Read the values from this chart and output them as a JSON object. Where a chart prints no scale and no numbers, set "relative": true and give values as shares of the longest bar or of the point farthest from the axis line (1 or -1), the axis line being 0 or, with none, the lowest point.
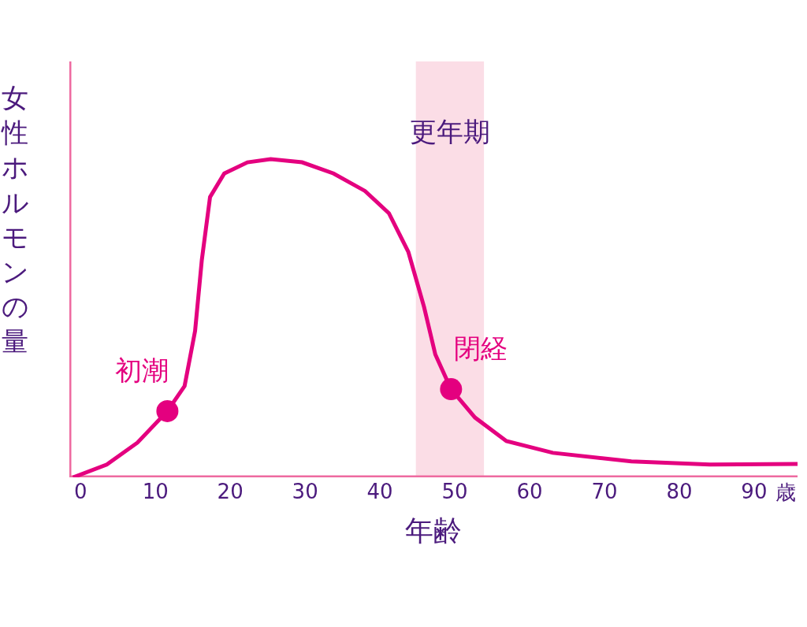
{
  "chart_data": {
    "type": "line",
    "relative": true,
    "xlabel": "年齢",
    "ylabel": "女性ホルモンの量",
    "xlim": [
      -1.5,
      95.8
    ],
    "xticks": [
      0,
      10,
      20,
      30,
      40,
      50,
      60,
      70,
      80,
      90
    ],
    "grid": false,
    "marker": "none",
    "line_style": "solid",
    "series": [
      {
        "color": "#e4007f",
        "x": [
          -1,
          3.5,
          7.6,
          11.6,
          13.9,
          15.3,
          16.2,
          17.3,
          19.2,
          22.3,
          25.4,
          29.6,
          33.8,
          38,
          41.2,
          43.8,
          45.9,
          47.4,
          49.5,
          52.7,
          56.9,
          63.1,
          73.6,
          84.1,
          95.8
        ],
        "values": [
          0,
          0.04,
          0.109,
          0.208,
          0.287,
          0.46,
          0.683,
          0.881,
          0.955,
          0.99,
          1,
          0.99,
          0.955,
          0.9,
          0.83,
          0.708,
          0.535,
          0.386,
          0.277,
          0.188,
          0.114,
          0.077,
          0.05,
          0.04,
          0.042
        ]
      },
      {
        "type": "scatter",
        "marker": "circle",
        "color": "#e4007f",
        "x": [
          11.6,
          49.5
        ],
        "values": [
          0.208,
          0.277
        ]
      }
    ],
    "bands": [
      {
        "axis": "x",
        "from": 44.8,
        "to": 53.9,
        "label": "更年期",
        "color": "#fbdde6"
      }
    ],
    "annotations": [
      "歳",
      {
        "text": "初潮",
        "x": 11.6,
        "y": 0.208
      },
      {
        "text": "閉経",
        "x": 49.5,
        "y": 0.277
      }
    ]
  }
}
